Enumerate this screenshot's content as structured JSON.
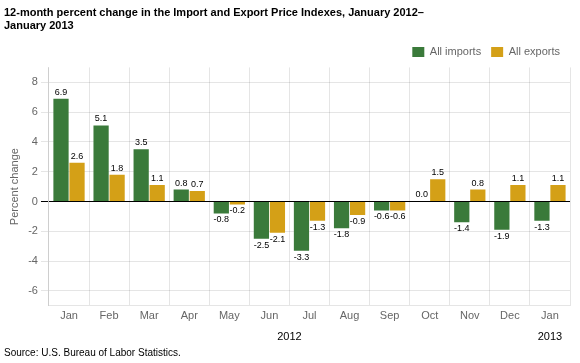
{
  "chart_data": {
    "type": "bar",
    "title": [
      "12-month percent change in the Import and Export Price Indexes, January 2012–",
      "January 2013"
    ],
    "source": "Source: U.S. Bureau of Labor Statistics.",
    "y_label": "Percent change",
    "categories": [
      "Jan",
      "Feb",
      "Mar",
      "Apr",
      "May",
      "Jun",
      "Jul",
      "Aug",
      "Sep",
      "Oct",
      "Nov",
      "Dec",
      "Jan"
    ],
    "series": [
      {
        "name": "All imports",
        "color": "#3a7a3a",
        "values": [
          6.9,
          5.1,
          3.5,
          0.8,
          -0.8,
          -2.5,
          -3.3,
          -1.8,
          -0.6,
          0.0,
          -1.4,
          -1.9,
          -1.3
        ],
        "value_labels": [
          "6.9",
          "5.1",
          "3.5",
          "0.8",
          "-0.8",
          "-2.5",
          "-3.3",
          "-1.8",
          "-0.6",
          "0.0",
          "-1.4",
          "-1.9",
          "-1.3"
        ]
      },
      {
        "name": "All exports",
        "color": "#d4a017",
        "values": [
          2.6,
          1.8,
          1.1,
          0.7,
          -0.2,
          -2.1,
          -1.3,
          -0.9,
          -0.6,
          1.5,
          0.8,
          1.1,
          1.1
        ]
      }
    ],
    "annotations": [
      {
        "text": "2012",
        "x": 5.5
      },
      {
        "text": "2013",
        "x": 12
      }
    ],
    "ylim": [
      -7,
      9
    ],
    "yticks": [
      -6,
      -4,
      -2,
      0,
      2,
      4,
      6,
      8
    ],
    "grid": true,
    "legend": "upper right",
    "data_labels": true
  }
}
